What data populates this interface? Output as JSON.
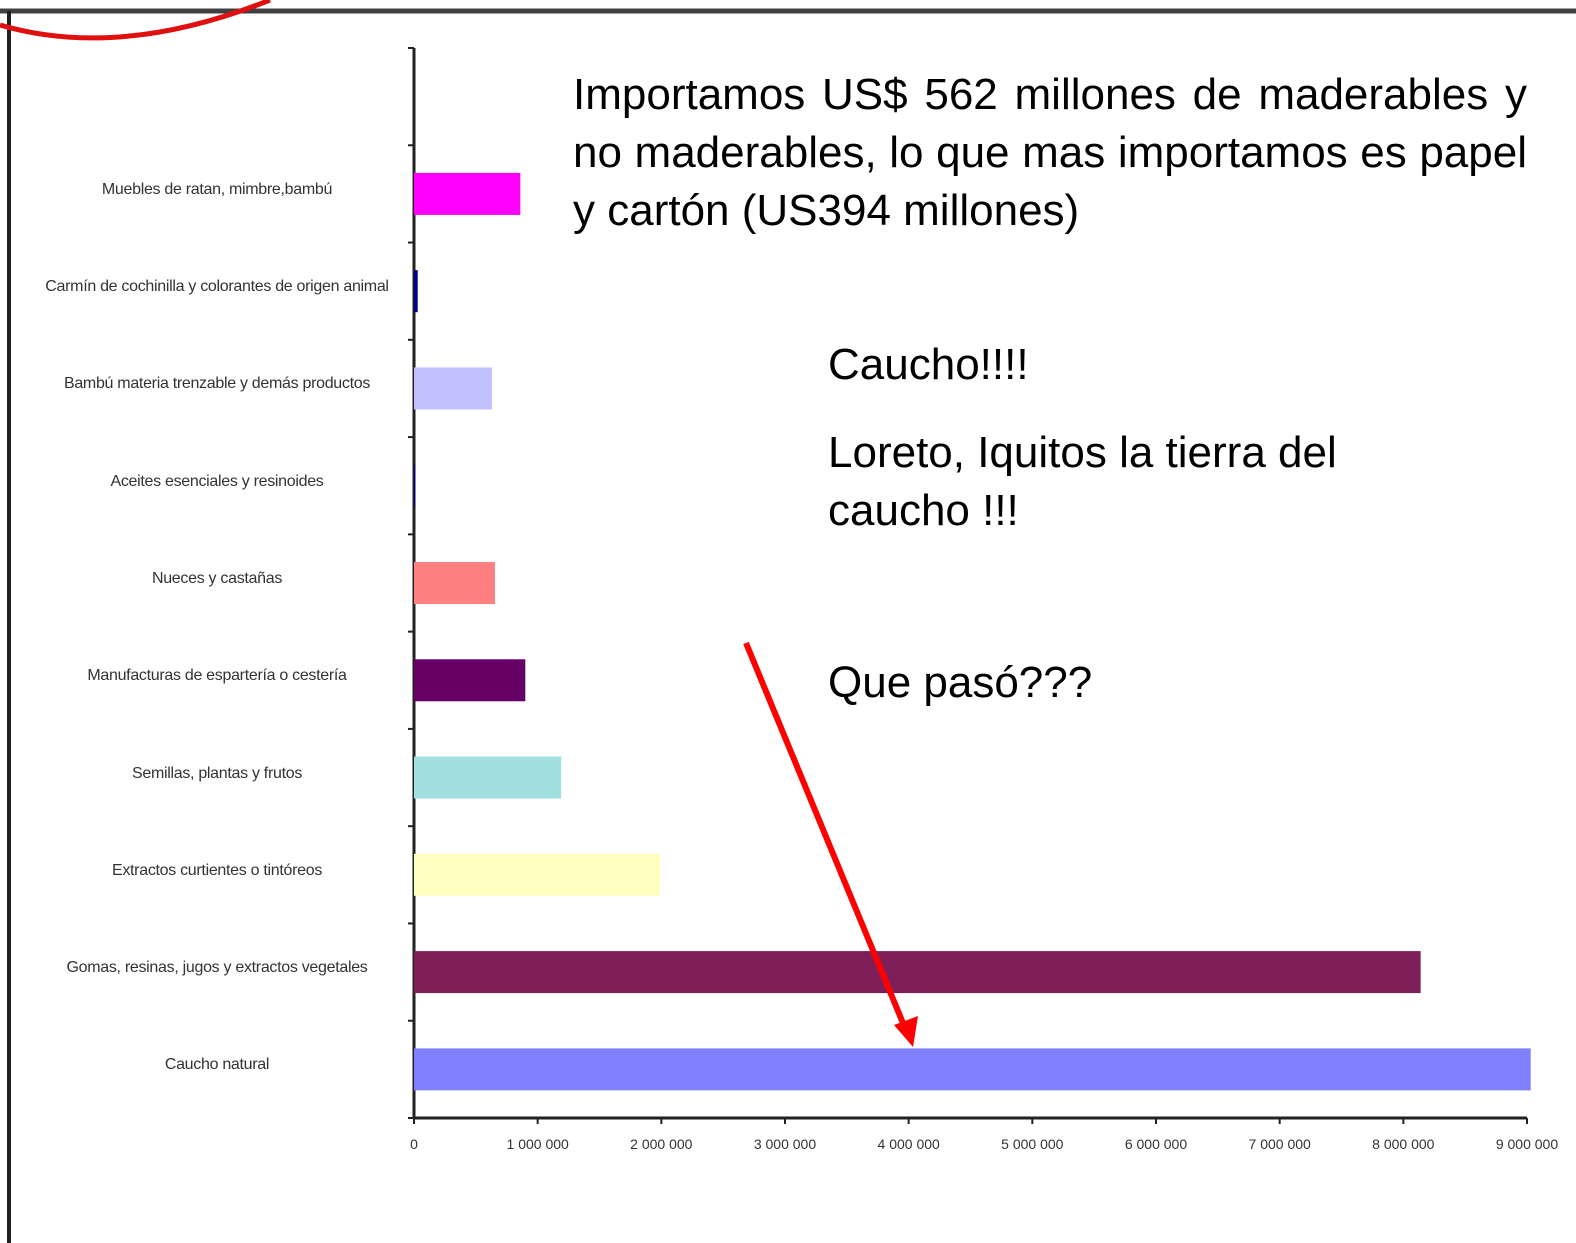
{
  "chart_data": {
    "type": "bar",
    "orientation": "horizontal",
    "categories": [
      "Muebles de ratan, mimbre,bambú",
      "Carmín de cochinilla y colorantes de origen animal",
      "Bambú materia trenzable y demás productos",
      "Aceites esenciales y resinoides",
      "Nueces y castañas",
      "Manufacturas de espartería o cestería",
      "Semillas, plantas y frutos",
      "Extractos curtientes o tintóreos",
      "Gomas, resinas, jugos y extractos vegetales",
      "Caucho natural"
    ],
    "values": [
      860000,
      30000,
      630000,
      10000,
      655000,
      900000,
      1190000,
      1990000,
      8140000,
      9030000
    ],
    "colors": [
      "#ff00ff",
      "#000080",
      "#c0c0ff",
      "#000080",
      "#ff8080",
      "#660066",
      "#a0e0e0",
      "#ffffc0",
      "#7f1f5a",
      "#8080ff"
    ],
    "xlim": [
      0,
      9000000
    ],
    "xticks": [
      0,
      {
        "value": 1000000,
        "label": "1 000 000"
      },
      {
        "value": 2000000,
        "label": "2 000 000"
      },
      {
        "value": 3000000,
        "label": "3 000 000"
      },
      {
        "value": 4000000,
        "label": "4 000 000"
      },
      {
        "value": 5000000,
        "label": "5 000 000"
      },
      {
        "value": 6000000,
        "label": "6 000 000"
      },
      {
        "value": 7000000,
        "label": "7 000 000"
      },
      {
        "value": 8000000,
        "label": "8 000 000"
      },
      {
        "value": 9000000,
        "label": "9 000 000"
      }
    ],
    "grid": false,
    "annotations": [
      "Importamos US$ 562 millones de maderables y no maderables, lo que mas importamos es papel y cartón (US394 millones)",
      "Caucho!!!!",
      "Loreto, Iquitos la tierra del caucho !!!",
      "Que pasó???"
    ]
  }
}
